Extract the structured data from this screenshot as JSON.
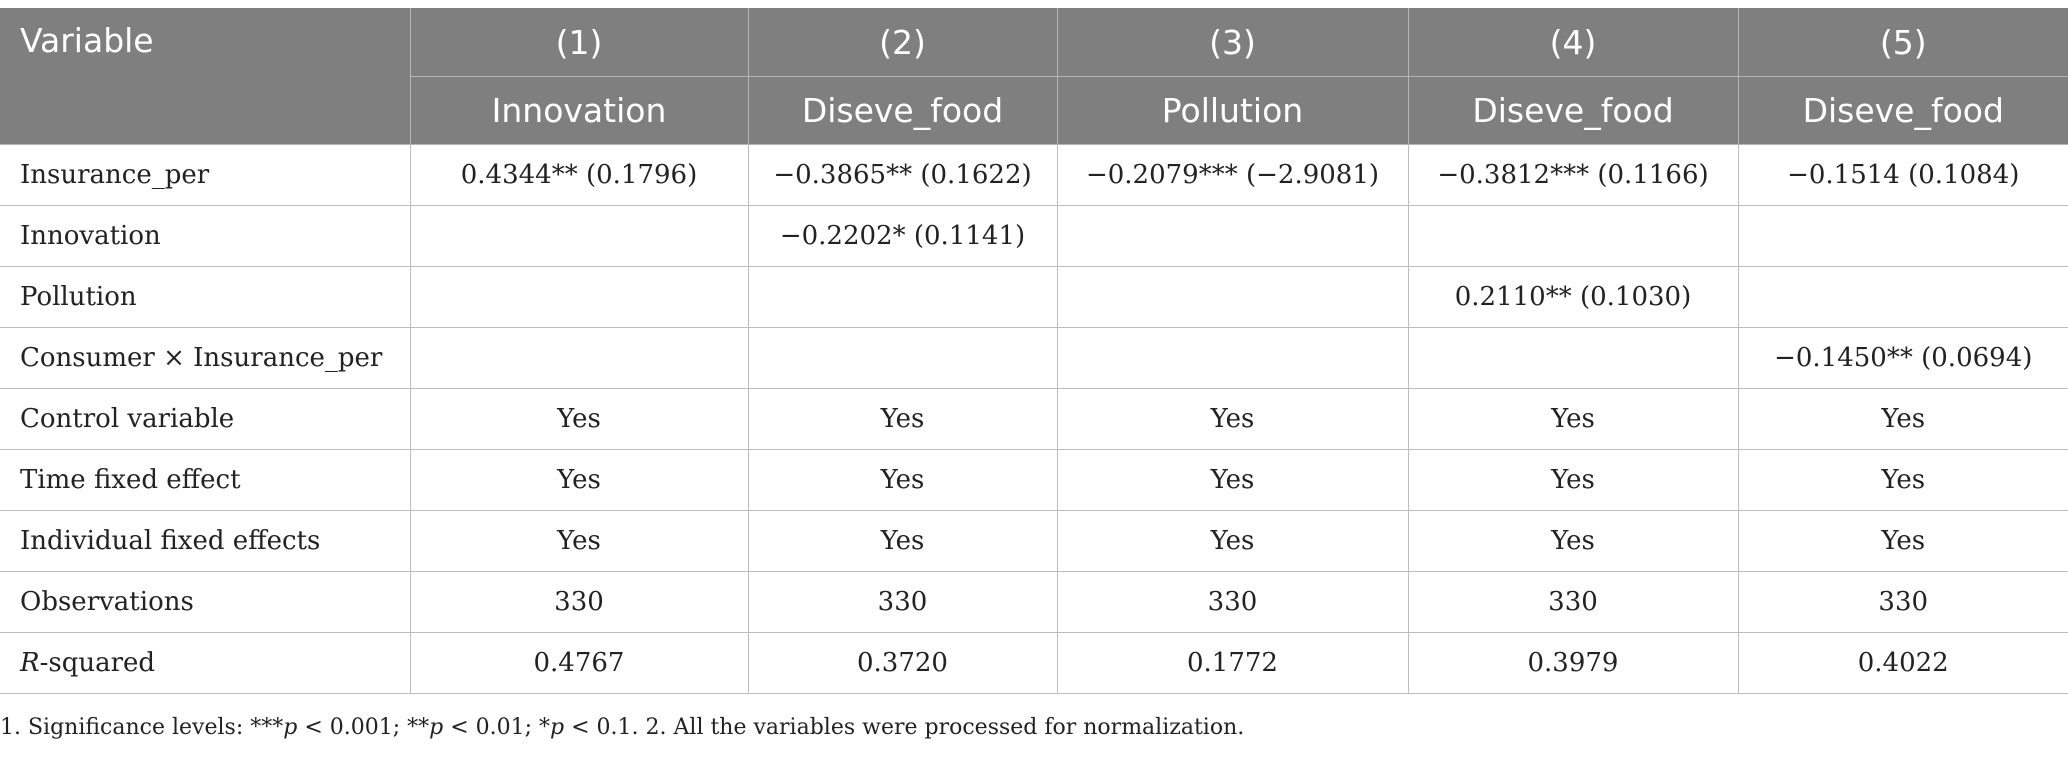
{
  "header": {
    "variable_label": "Variable",
    "columns": [
      {
        "num": "(1)",
        "dep": "Innovation"
      },
      {
        "num": "(2)",
        "dep": "Diseve_food"
      },
      {
        "num": "(3)",
        "dep": "Pollution"
      },
      {
        "num": "(4)",
        "dep": "Diseve_food"
      },
      {
        "num": "(5)",
        "dep": "Diseve_food"
      }
    ]
  },
  "rows": [
    {
      "label": "Insurance_per",
      "cells": [
        "0.4344** (0.1796)",
        "−0.3865** (0.1622)",
        "−0.2079*** (−2.9081)",
        "−0.3812*** (0.1166)",
        "−0.1514 (0.1084)"
      ]
    },
    {
      "label": "Innovation",
      "cells": [
        "",
        "−0.2202* (0.1141)",
        "",
        "",
        ""
      ]
    },
    {
      "label": "Pollution",
      "cells": [
        "",
        "",
        "",
        "0.2110** (0.1030)",
        ""
      ]
    },
    {
      "label": "Consumer × Insurance_per",
      "cells": [
        "",
        "",
        "",
        "",
        "−0.1450** (0.0694)"
      ]
    },
    {
      "label": "Control variable",
      "cells": [
        "Yes",
        "Yes",
        "Yes",
        "Yes",
        "Yes"
      ]
    },
    {
      "label": "Time fixed effect",
      "cells": [
        "Yes",
        "Yes",
        "Yes",
        "Yes",
        "Yes"
      ]
    },
    {
      "label": "Individual fixed effects",
      "cells": [
        "Yes",
        "Yes",
        "Yes",
        "Yes",
        "Yes"
      ]
    },
    {
      "label": "Observations",
      "cells": [
        "330",
        "330",
        "330",
        "330",
        "330"
      ]
    },
    {
      "label": "R-squared",
      "cells": [
        "0.4767",
        "0.3720",
        "0.1772",
        "0.3979",
        "0.4022"
      ]
    }
  ],
  "footnote": "1. Significance levels: ***p < 0.001; **p < 0.01; *p < 0.1. 2. All the variables were processed for normalization.",
  "colors": {
    "header_bg": "#7f7f7f",
    "header_text": "#ffffff",
    "grid": "#bdbdbd"
  }
}
